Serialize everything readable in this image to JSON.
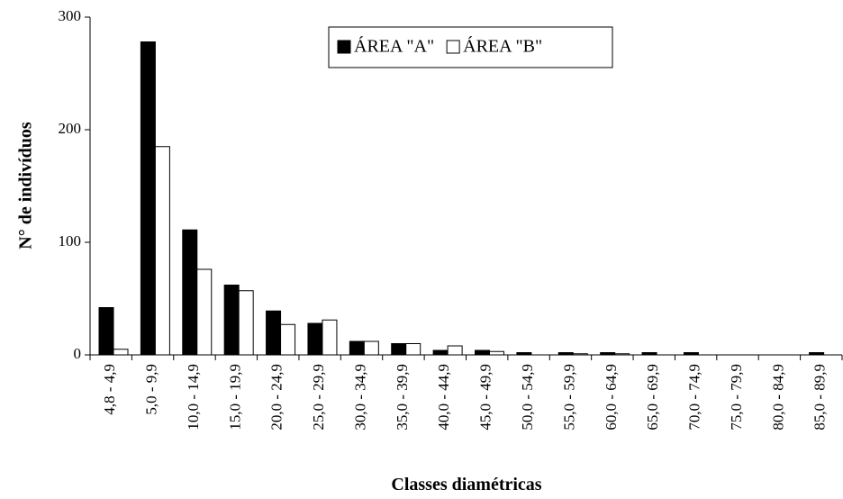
{
  "chart_data": {
    "type": "bar",
    "x_label": "Classes diamétricas",
    "y_label": "N° de indivíduos",
    "categories": [
      "4,8 - 4,9",
      "5,0 - 9,9",
      "10,0 - 14,9",
      "15,0 - 19,9",
      "20,0 - 24,9",
      "25,0 - 29,9",
      "30,0 - 34,9",
      "35,0 - 39,9",
      "40,0 - 44,9",
      "45,0 - 49,9",
      "50,0 - 54,9",
      "55,0 - 59,9",
      "60,0 - 64,9",
      "65,0 - 69,9",
      "70,0 - 74,9",
      "75,0 - 79,9",
      "80,0 - 84,9",
      "85,0 - 89,9"
    ],
    "series": [
      {
        "name": "ÁREA \"A\"",
        "color": "#000000",
        "values": [
          42,
          278,
          111,
          62,
          39,
          28,
          12,
          10,
          4,
          4,
          2,
          2,
          2,
          2,
          2,
          0,
          0,
          2
        ]
      },
      {
        "name": "ÁREA \"B\"",
        "color": "#ffffff",
        "values": [
          5,
          185,
          76,
          57,
          27,
          31,
          12,
          10,
          8,
          3,
          0,
          1,
          1,
          0,
          0,
          0,
          0,
          0
        ]
      }
    ],
    "ylim": [
      0,
      300
    ],
    "yticks": [
      0,
      100,
      200,
      300
    ],
    "legend": "top"
  }
}
